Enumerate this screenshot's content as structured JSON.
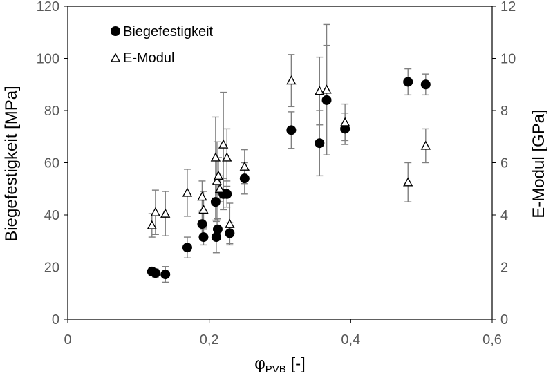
{
  "chart_data": {
    "type": "scatter",
    "title": "",
    "xlabel": "φ",
    "xlabel_sub": "PVB",
    "xlabel_suffix": " [-]",
    "ylabel": "Biegefestigkeit [MPa]",
    "y2label": "E-Modul [GPa]",
    "xlim": [
      0,
      0.6
    ],
    "ylim": [
      0,
      120
    ],
    "y2lim": [
      0,
      12
    ],
    "x_ticks": [
      "0",
      "0,2",
      "0,4",
      "0,6"
    ],
    "x_tick_values": [
      0,
      0.2,
      0.4,
      0.6
    ],
    "y_ticks": [
      "0",
      "20",
      "40",
      "60",
      "80",
      "100",
      "120"
    ],
    "y_tick_values": [
      0,
      20,
      40,
      60,
      80,
      100,
      120
    ],
    "y2_ticks": [
      "0",
      "2",
      "4",
      "6",
      "8",
      "10",
      "12"
    ],
    "y2_tick_values": [
      0,
      2,
      4,
      6,
      8,
      10,
      12
    ],
    "grid": false,
    "legend_position": "top-left",
    "colors": {
      "marker": "#000000",
      "errorbar": "#7f7f7f",
      "axis": "#000000",
      "tick_text": "#595959"
    },
    "series": [
      {
        "name": "Biegefestigkeit",
        "marker": "circle-filled",
        "axis": "left",
        "points": [
          {
            "x": 0.119,
            "y": 18.3,
            "err": 1.5
          },
          {
            "x": 0.124,
            "y": 17.7,
            "err": 1.5
          },
          {
            "x": 0.138,
            "y": 17.2,
            "err": 3
          },
          {
            "x": 0.169,
            "y": 27.5,
            "err": 4
          },
          {
            "x": 0.19,
            "y": 36.5,
            "err": 5
          },
          {
            "x": 0.192,
            "y": 31.5,
            "err": 3
          },
          {
            "x": 0.209,
            "y": 45.0,
            "err": 7
          },
          {
            "x": 0.21,
            "y": 31.5,
            "err": 6
          },
          {
            "x": 0.212,
            "y": 34.5,
            "err": 4
          },
          {
            "x": 0.22,
            "y": 48.0,
            "err": 6
          },
          {
            "x": 0.225,
            "y": 48.0,
            "err": 5
          },
          {
            "x": 0.229,
            "y": 33.0,
            "err": 4
          },
          {
            "x": 0.25,
            "y": 54.0,
            "err": 6
          },
          {
            "x": 0.316,
            "y": 72.5,
            "err": 7
          },
          {
            "x": 0.356,
            "y": 67.5,
            "err": 12.5
          },
          {
            "x": 0.366,
            "y": 84.0,
            "err": 21
          },
          {
            "x": 0.392,
            "y": 73.0,
            "err": 6
          },
          {
            "x": 0.481,
            "y": 91.0,
            "err": 5
          },
          {
            "x": 0.506,
            "y": 90.0,
            "err": 4
          }
        ]
      },
      {
        "name": "E-Modul",
        "marker": "triangle-open",
        "axis": "right",
        "points": [
          {
            "x": 0.119,
            "y": 3.6,
            "err": 0.45
          },
          {
            "x": 0.124,
            "y": 4.1,
            "err": 0.85
          },
          {
            "x": 0.138,
            "y": 4.05,
            "err": 0.85
          },
          {
            "x": 0.169,
            "y": 4.85,
            "err": 0.9
          },
          {
            "x": 0.19,
            "y": 4.7,
            "err": 0.6
          },
          {
            "x": 0.192,
            "y": 4.2,
            "err": 0.7
          },
          {
            "x": 0.209,
            "y": 6.2,
            "err": 1.55
          },
          {
            "x": 0.211,
            "y": 5.3,
            "err": 1.5
          },
          {
            "x": 0.213,
            "y": 5.5,
            "err": 0.7
          },
          {
            "x": 0.215,
            "y": 5.0,
            "err": 0.5
          },
          {
            "x": 0.22,
            "y": 6.7,
            "err": 2.0
          },
          {
            "x": 0.225,
            "y": 6.2,
            "err": 1.1
          },
          {
            "x": 0.229,
            "y": 3.65,
            "err": 0.8
          },
          {
            "x": 0.25,
            "y": 5.85,
            "err": 0.65
          },
          {
            "x": 0.316,
            "y": 9.15,
            "err": 1.0
          },
          {
            "x": 0.356,
            "y": 8.75,
            "err": 1.3
          },
          {
            "x": 0.366,
            "y": 8.8,
            "err": 2.5
          },
          {
            "x": 0.392,
            "y": 7.55,
            "err": 0.7
          },
          {
            "x": 0.481,
            "y": 5.25,
            "err": 0.75
          },
          {
            "x": 0.506,
            "y": 6.65,
            "err": 0.65
          }
        ]
      }
    ]
  }
}
